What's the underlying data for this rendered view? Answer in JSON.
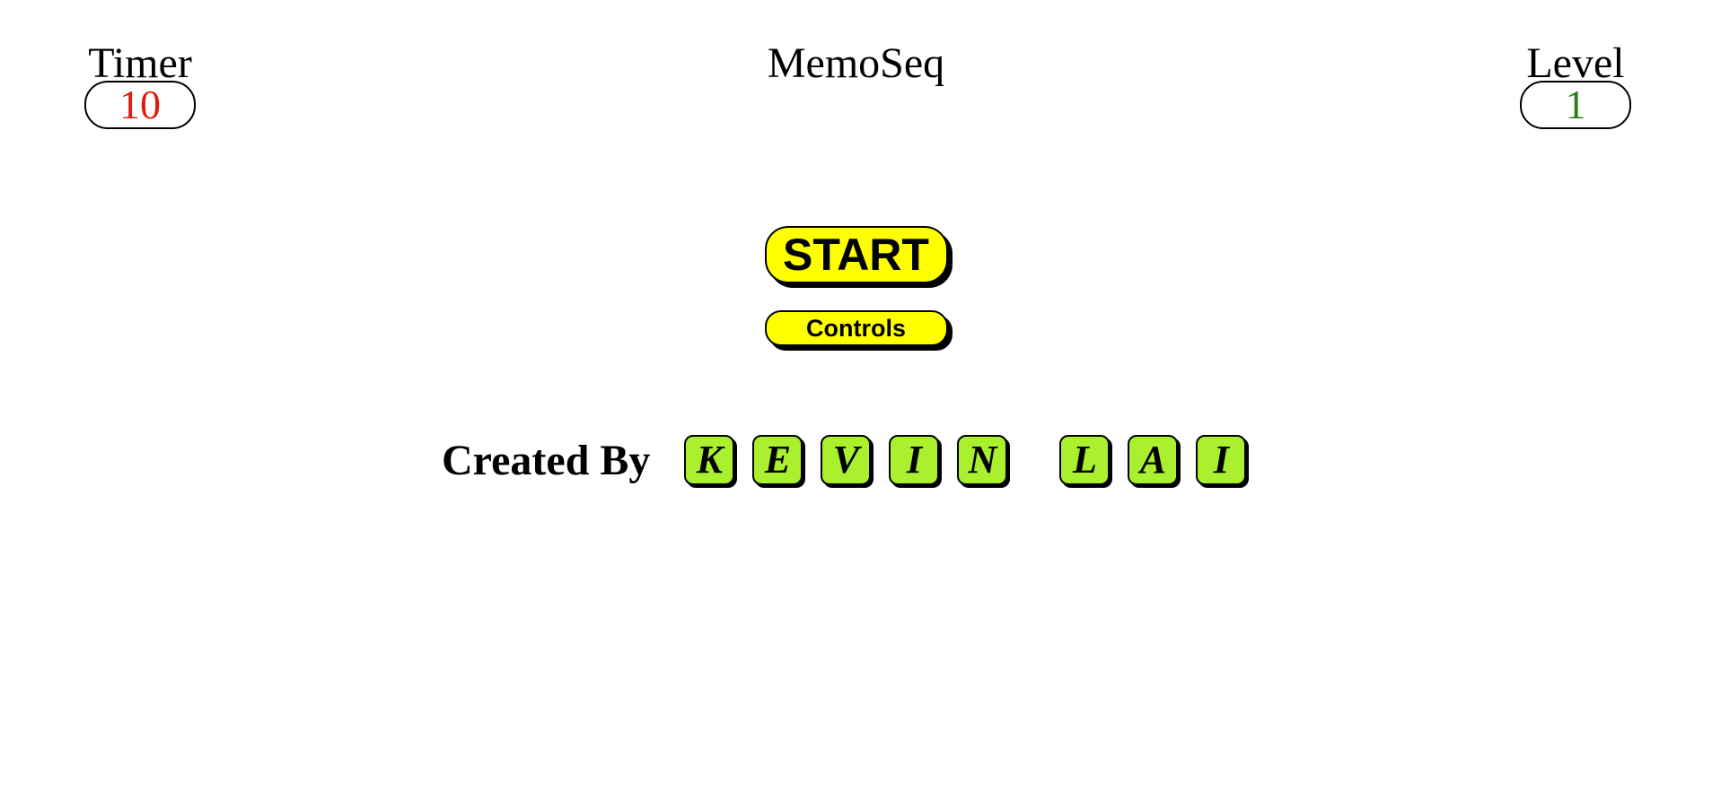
{
  "header": {
    "timer_label": "Timer",
    "timer_value": "10",
    "title": "MemoSeq",
    "level_label": "Level",
    "level_value": "1"
  },
  "menu": {
    "start_label": "START",
    "controls_label": "Controls"
  },
  "credits": {
    "label": "Created By",
    "first_name_tiles": [
      "K",
      "E",
      "V",
      "I",
      "N"
    ],
    "last_name_tiles": [
      "L",
      "A",
      "I"
    ]
  },
  "colors": {
    "timer_value": "#e01b0e",
    "level_value": "#2e7d1c",
    "button_fill": "#ffff00",
    "tile_fill": "#aaf02e"
  }
}
